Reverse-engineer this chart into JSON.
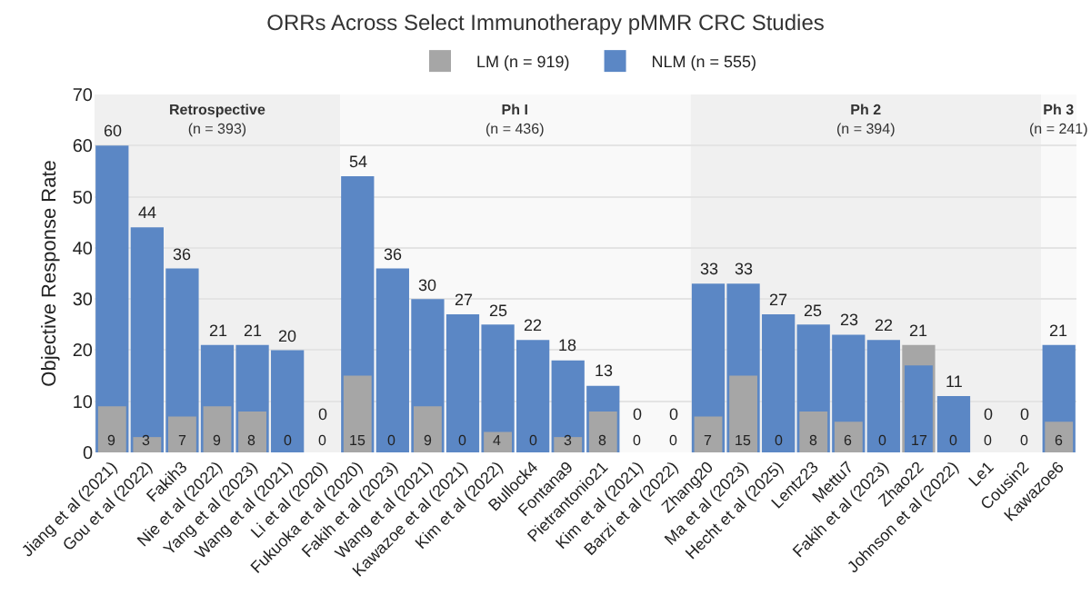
{
  "chart_data": {
    "type": "bar",
    "title": "ORRs Across Select Immunotherapy pMMR CRC Studies",
    "ylabel": "Objective Response Rate",
    "categories": [
      "Jiang et al (2021)",
      "Gou et al (2022)",
      "Fakih3",
      "Nie et al (2022)",
      "Yang et al (2023)",
      "Wang et al (2021)",
      "Li et al (2020)",
      "Fukuoka et al (2020)",
      "Fakih et al (2023)",
      "Wang et al (2021)",
      "Kawazoe et al (2021)",
      "Kim et al (2022)",
      "Bullock4",
      "Fontana9",
      "Pietrantonio21",
      "Kim et al (2021)",
      "Barzi et al (2022)",
      "Zhang20",
      "Ma et al (2023)",
      "Hecht et al (2025)",
      "Lentz23",
      "Mettu7",
      "Fakih et al (2023)",
      "Zhao22",
      "Johnson et al (2022)",
      "Le1",
      "Cousin2",
      "Kawazoe6"
    ],
    "series": [
      {
        "name": "LM (n = 919)",
        "color": "#a6a6a6",
        "values": [
          9,
          3,
          7,
          9,
          8,
          0,
          0,
          15,
          0,
          9,
          0,
          4,
          0,
          3,
          8,
          0,
          0,
          7,
          15,
          0,
          8,
          6,
          0,
          21,
          0,
          0,
          0,
          6
        ]
      },
      {
        "name": "NLM (n = 555)",
        "color": "#5b87c5",
        "values": [
          60,
          44,
          36,
          21,
          21,
          20,
          0,
          54,
          36,
          30,
          27,
          25,
          22,
          18,
          13,
          0,
          0,
          33,
          33,
          27,
          25,
          23,
          22,
          17,
          11,
          0,
          0,
          21
        ]
      }
    ],
    "ylim": [
      0,
      70
    ],
    "yticks": [
      0,
      10,
      20,
      30,
      40,
      50,
      60,
      70
    ],
    "grid": "y",
    "legend": "top",
    "data_labels": true,
    "bands": [
      {
        "axis": "x",
        "from": "Jiang et al (2021)",
        "to": "Li et al (2020)",
        "label": "Retrospective\n(n = 393)",
        "color": "#f0f0f0"
      },
      {
        "axis": "x",
        "from": "Fukuoka et al (2020)",
        "to": "Barzi et al (2022)",
        "label": "Ph I\n(n = 436)",
        "color": "#f9f9f9"
      },
      {
        "axis": "x",
        "from": "Zhang20",
        "to": "Cousin2",
        "label": "Ph 2\n(n = 394)",
        "color": "#f0f0f0"
      },
      {
        "axis": "x",
        "from": "Kawazoe6",
        "to": "Kawazoe6",
        "label": "Ph 3\n(n = 241)",
        "color": "#f9f9f9"
      }
    ]
  }
}
